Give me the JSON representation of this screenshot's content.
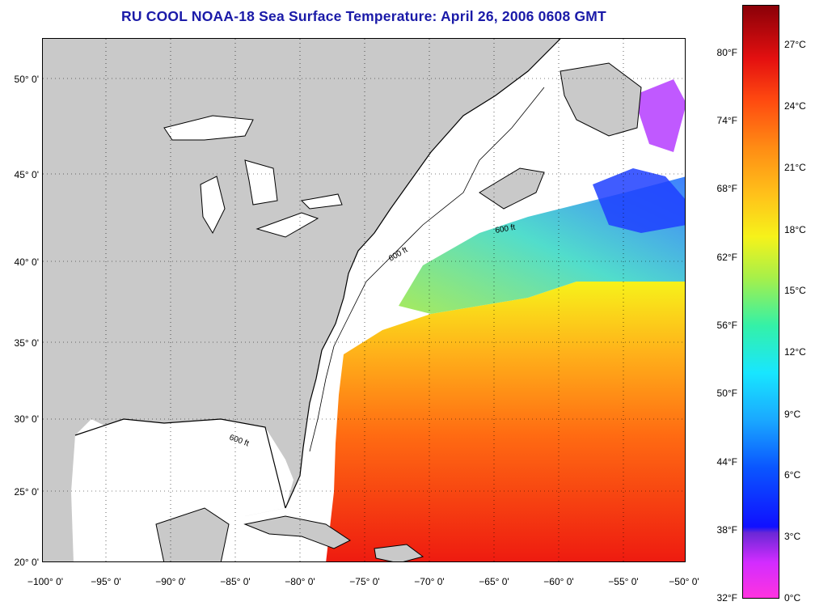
{
  "title": "RU COOL  NOAA-18  Sea Surface Temperature:  April 26, 2006 0608 GMT",
  "map": {
    "lat_labels": [
      "50° 0'",
      "45° 0'",
      "40° 0'",
      "35° 0'",
      "30° 0'",
      "25° 0'",
      "20° 0'"
    ],
    "lon_labels": [
      "−100° 0'",
      "−95° 0'",
      "−90° 0'",
      "−85° 0'",
      "−80° 0'",
      "−75° 0'",
      "−70° 0'",
      "−65° 0'",
      "−60° 0'",
      "−55° 0'",
      "−50° 0'"
    ],
    "lat_range": [
      20,
      52.5
    ],
    "lon_range": [
      -100,
      -50
    ],
    "contour_label": "600 ft",
    "land_color": "#c9c9c9",
    "no_data_color": "#ffffff"
  },
  "colorbar": {
    "fahrenheit_labels": [
      "80°F",
      "74°F",
      "68°F",
      "62°F",
      "56°F",
      "50°F",
      "44°F",
      "38°F",
      "32°F"
    ],
    "celsius_labels": [
      "27°C",
      "24°C",
      "21°C",
      "18°C",
      "15°C",
      "12°C",
      "9°C",
      "6°C",
      "3°C",
      "0°C"
    ],
    "range_celsius": [
      0,
      29
    ]
  }
}
